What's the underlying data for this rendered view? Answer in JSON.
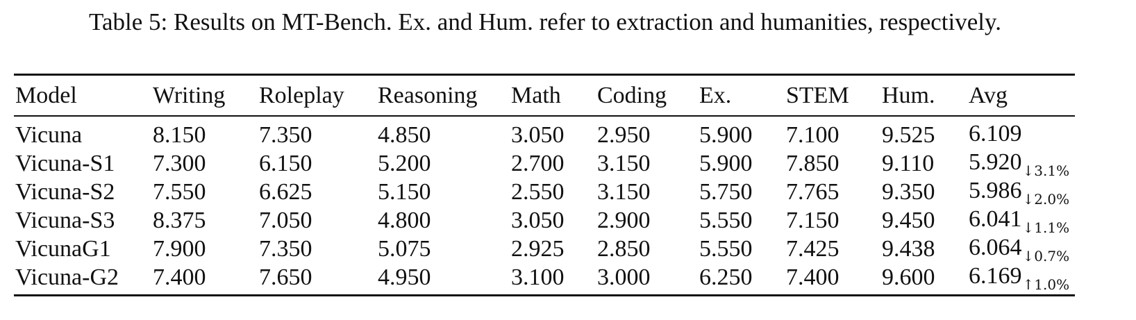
{
  "caption": "Table 5: Results on MT-Bench. Ex. and Hum. refer to extraction and humanities, respectively.",
  "table": {
    "headers": [
      "Model",
      "Writing",
      "Roleplay",
      "Reasoning",
      "Math",
      "Coding",
      "Ex.",
      "STEM",
      "Hum.",
      "Avg"
    ],
    "rows": [
      {
        "model": "Vicuna",
        "writing": "8.150",
        "roleplay": "7.350",
        "reasoning": "4.850",
        "math": "3.050",
        "coding": "2.950",
        "ex": "5.900",
        "stem": "7.100",
        "hum": "9.525",
        "avg": "6.109",
        "delta": ""
      },
      {
        "model": "Vicuna-S1",
        "writing": "7.300",
        "roleplay": "6.150",
        "reasoning": "5.200",
        "math": "2.700",
        "coding": "3.150",
        "ex": "5.900",
        "stem": "7.850",
        "hum": "9.110",
        "avg": "5.920",
        "delta": "↓3.1%"
      },
      {
        "model": "Vicuna-S2",
        "writing": "7.550",
        "roleplay": "6.625",
        "reasoning": "5.150",
        "math": "2.550",
        "coding": "3.150",
        "ex": "5.750",
        "stem": "7.765",
        "hum": "9.350",
        "avg": "5.986",
        "delta": "↓2.0%"
      },
      {
        "model": "Vicuna-S3",
        "writing": "8.375",
        "roleplay": "7.050",
        "reasoning": "4.800",
        "math": "3.050",
        "coding": "2.900",
        "ex": "5.550",
        "stem": "7.150",
        "hum": "9.450",
        "avg": "6.041",
        "delta": "↓1.1%"
      },
      {
        "model": "VicunaG1",
        "writing": "7.900",
        "roleplay": "7.350",
        "reasoning": "5.075",
        "math": "2.925",
        "coding": "2.850",
        "ex": "5.550",
        "stem": "7.425",
        "hum": "9.438",
        "avg": "6.064",
        "delta": "↓0.7%"
      },
      {
        "model": "Vicuna-G2",
        "writing": "7.400",
        "roleplay": "7.650",
        "reasoning": "4.950",
        "math": "3.100",
        "coding": "3.000",
        "ex": "6.250",
        "stem": "7.400",
        "hum": "9.600",
        "avg": "6.169",
        "delta": "↑1.0%"
      }
    ]
  }
}
